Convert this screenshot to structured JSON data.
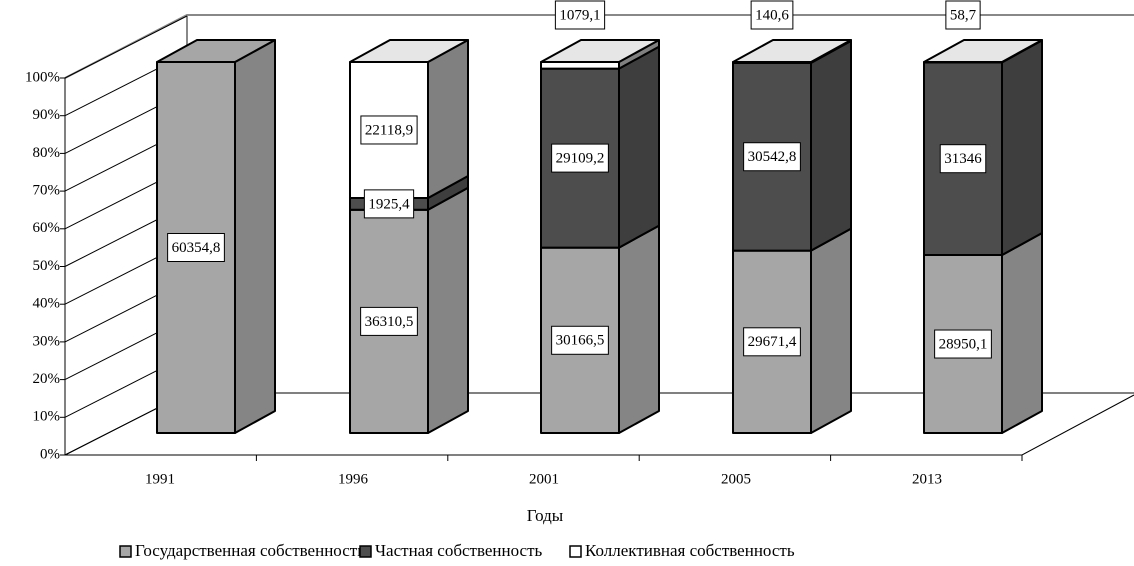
{
  "chart_data": {
    "type": "stacked-bar-3d-percent",
    "x_label": "Годы",
    "categories": [
      "1991",
      "1996",
      "2001",
      "2005",
      "2013"
    ],
    "series": [
      {
        "name": "Государственная собственность",
        "color": "#a6a6a6",
        "values": [
          60354.8,
          36310.5,
          30166.5,
          29671.4,
          28950.1
        ],
        "value_labels": [
          "60354,8",
          "36310,5",
          "30166,5",
          "29671,4",
          "28950,1"
        ]
      },
      {
        "name": "Частная собственность",
        "color": "#4d4d4d",
        "values": [
          null,
          1925.4,
          29109.2,
          30542.8,
          31346
        ],
        "value_labels": [
          null,
          "1925,4",
          "29109,2",
          "30542,8",
          "31346"
        ]
      },
      {
        "name": "Коллективная собственность",
        "color": "#ffffff",
        "values": [
          null,
          22118.9,
          1079.1,
          140.6,
          58.7
        ],
        "value_labels": [
          null,
          "22118,9",
          "1079,1",
          "140,6",
          "58,7"
        ]
      }
    ],
    "ylim": [
      0,
      100
    ],
    "yticks": [
      {
        "value": 0,
        "label": "0%"
      },
      {
        "value": 10,
        "label": "10%"
      },
      {
        "value": 20,
        "label": "20%"
      },
      {
        "value": 30,
        "label": "30%"
      },
      {
        "value": 40,
        "label": "40%"
      },
      {
        "value": 50,
        "label": "50%"
      },
      {
        "value": 60,
        "label": "60%"
      },
      {
        "value": 70,
        "label": "70%"
      },
      {
        "value": 80,
        "label": "80%"
      },
      {
        "value": 90,
        "label": "90%"
      },
      {
        "value": 100,
        "label": "100%"
      }
    ],
    "grid": true
  }
}
